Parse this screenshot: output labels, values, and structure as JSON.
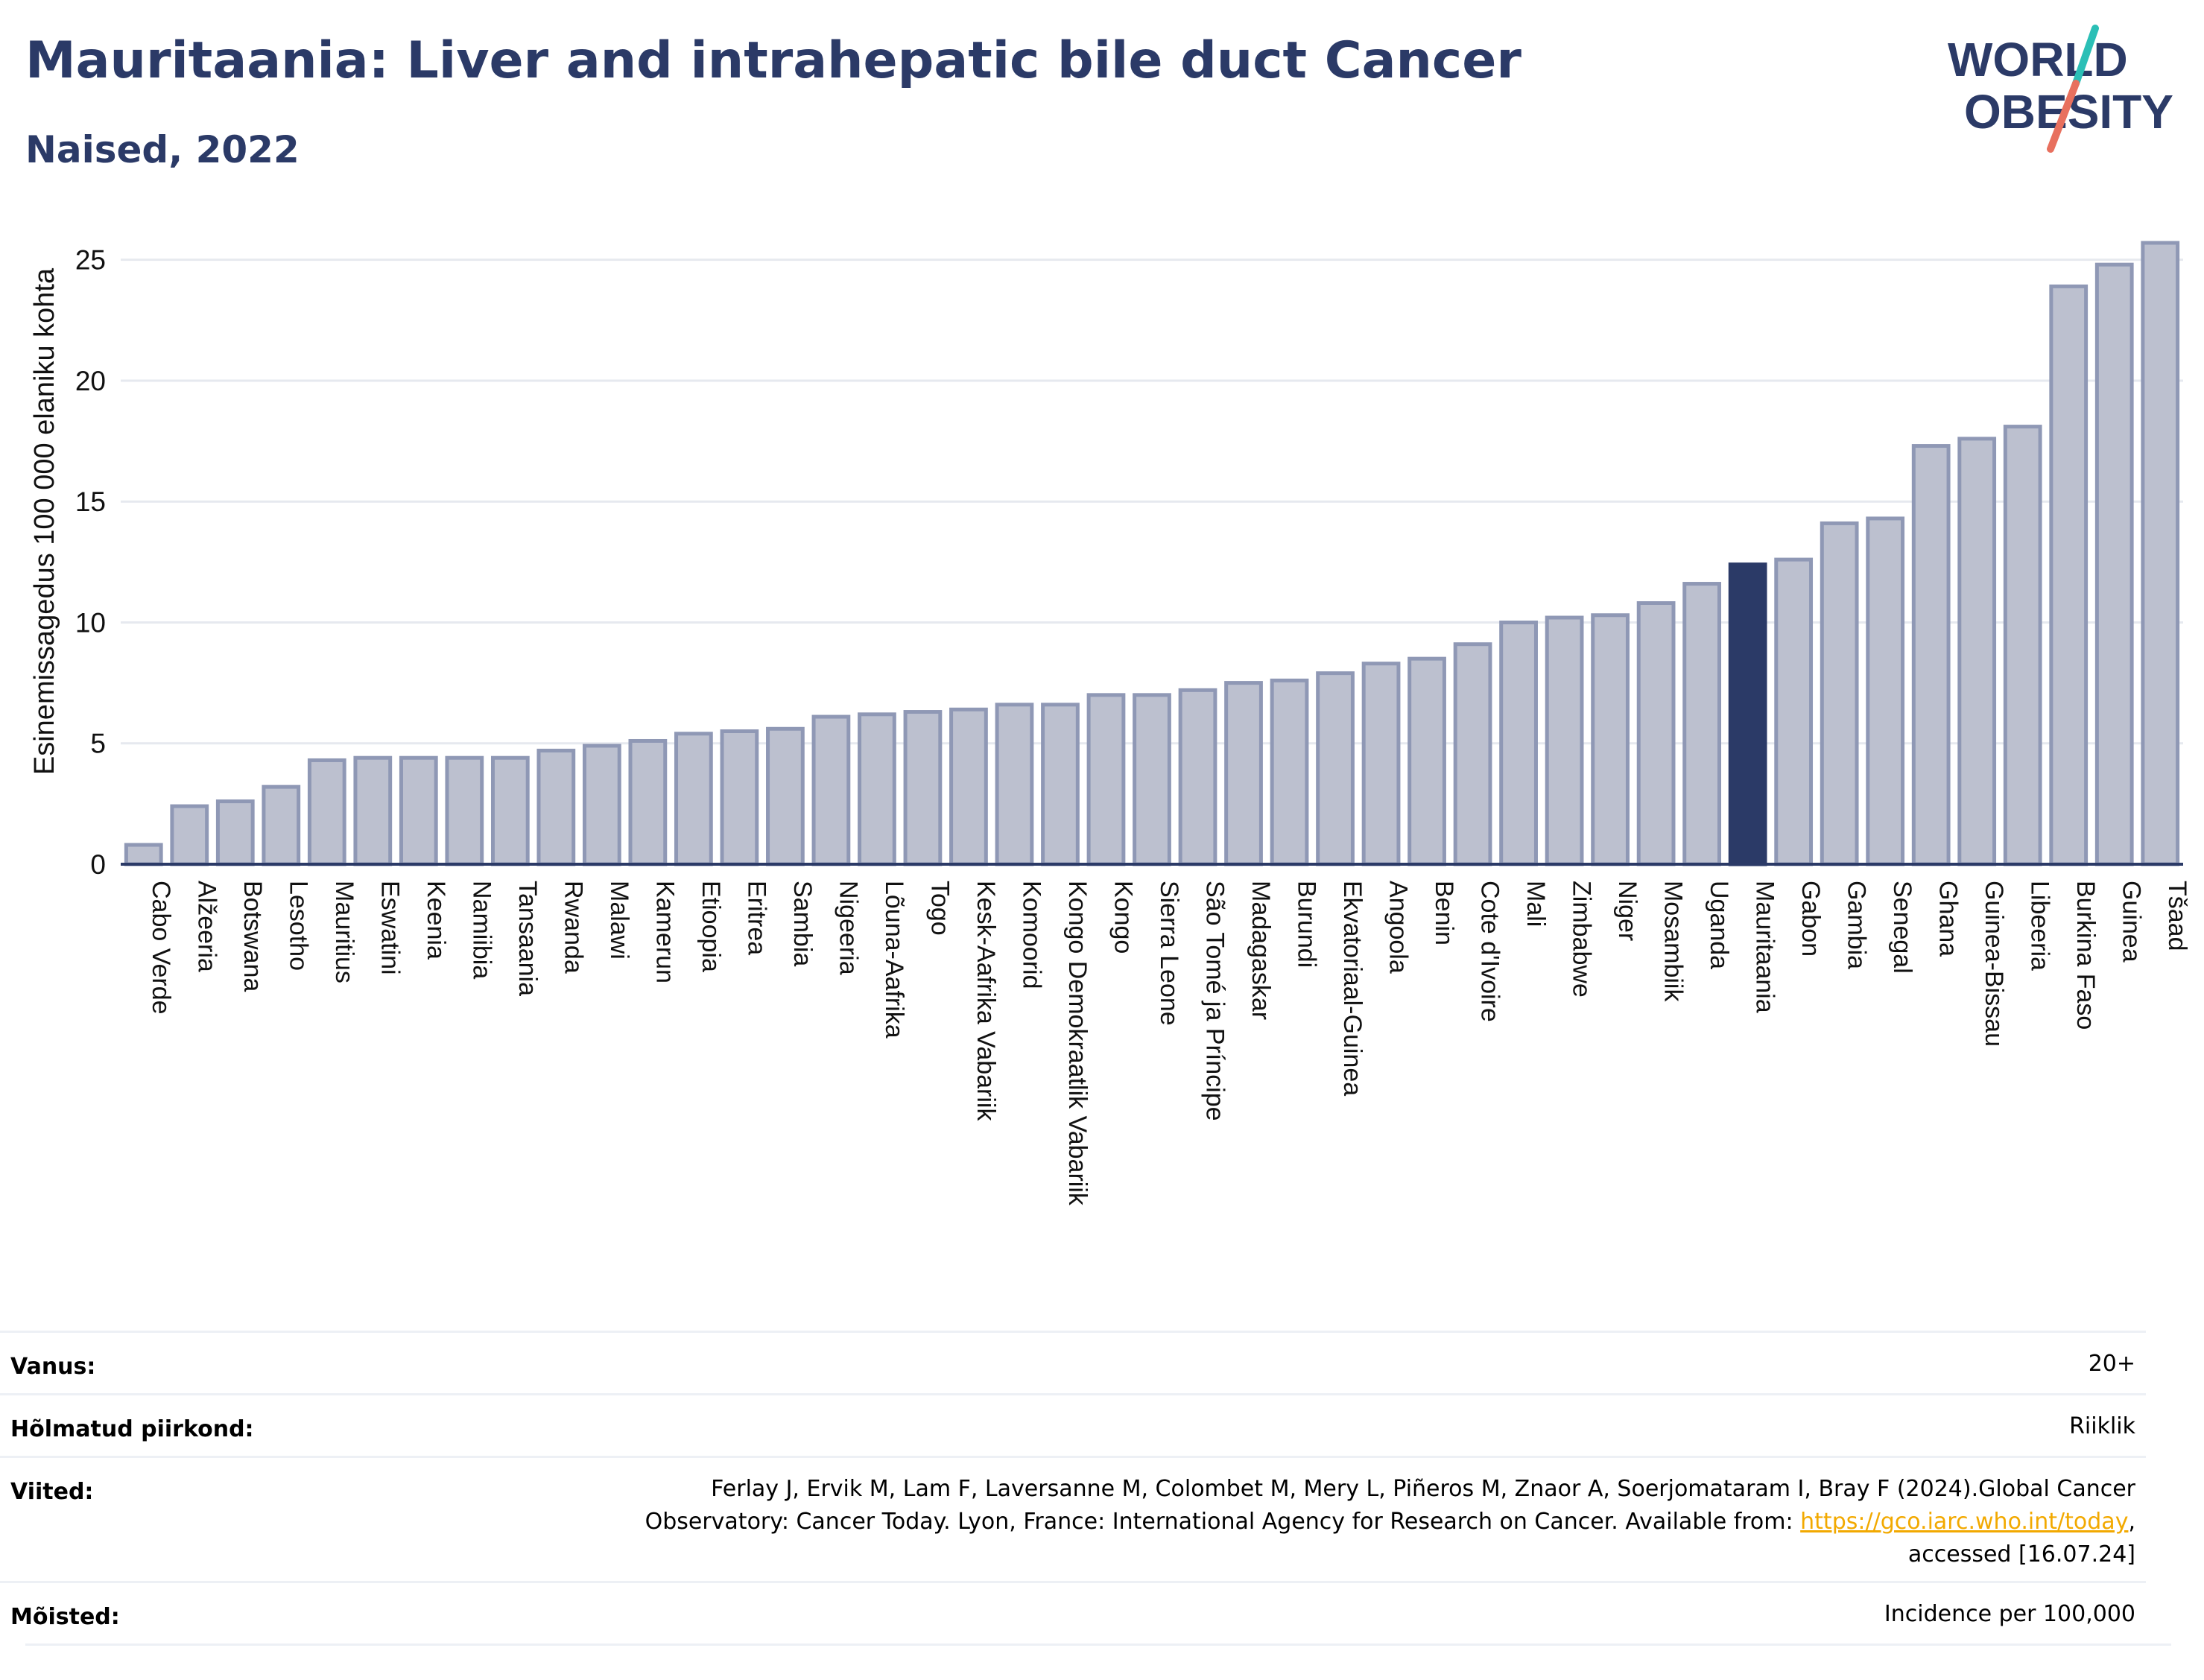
{
  "title": "Mauritaania: Liver and intrahepatic bile duct Cancer",
  "subtitle": "Naised, 2022",
  "logo": {
    "line1": "WORLD",
    "line2": "OBESITY"
  },
  "colors": {
    "bar": "#bcc0cf",
    "bar_border": "#8f98b5",
    "highlight": "#2b3a67",
    "title": "#2b3a67",
    "grid": "#e6e9ef"
  },
  "chart_data": {
    "type": "bar",
    "ylabel": "Esinemissagedus 100 000 elaniku kohta",
    "xlabel": "",
    "ylim": [
      0,
      26.5
    ],
    "yticks": [
      0,
      5,
      10,
      15,
      20,
      25
    ],
    "grid": true,
    "highlight": "Mauritaania",
    "categories": [
      "Cabo Verde",
      "Alžeeria",
      "Botswana",
      "Lesotho",
      "Mauritius",
      "Eswatini",
      "Keenia",
      "Namiibia",
      "Tansaania",
      "Rwanda",
      "Malawi",
      "Kamerun",
      "Etioopia",
      "Eritrea",
      "Sambia",
      "Nigeeria",
      "Lõuna-Aafrika",
      "Togo",
      "Kesk-Aafrika Vabariik",
      "Komoorid",
      "Kongo Demokraatlik Vabariik",
      "Kongo",
      "Sierra Leone",
      "São Tomé ja Príncipe",
      "Madagaskar",
      "Burundi",
      "Ekvatoriaal-Guinea",
      "Angoola",
      "Benin",
      "Cote d'Ivoire",
      "Mali",
      "Zimbabwe",
      "Niger",
      "Mosambiik",
      "Uganda",
      "Mauritaania",
      "Gabon",
      "Gambia",
      "Senegal",
      "Ghana",
      "Guinea-Bissau",
      "Libeeria",
      "Burkina Faso",
      "Guinea",
      "Tšaad"
    ],
    "values": [
      0.8,
      2.4,
      2.6,
      3.2,
      4.3,
      4.4,
      4.4,
      4.4,
      4.4,
      4.7,
      4.9,
      5.1,
      5.4,
      5.5,
      5.6,
      6.1,
      6.2,
      6.3,
      6.4,
      6.6,
      6.6,
      7.0,
      7.0,
      7.2,
      7.5,
      7.6,
      7.9,
      8.3,
      8.5,
      9.1,
      10.0,
      10.2,
      10.3,
      10.8,
      11.6,
      12.4,
      12.6,
      14.1,
      14.3,
      17.3,
      17.6,
      18.1,
      23.9,
      24.8,
      25.7
    ]
  },
  "meta": [
    {
      "label": "Vanus:",
      "value": "20+"
    },
    {
      "label": "Hõlmatud piirkond:",
      "value": "Riiklik"
    },
    {
      "label": "Viited:",
      "value_line1": "Ferlay J, Ervik M, Lam F, Laversanne M, Colombet M, Mery L, Piñeros M, Znaor A, Soerjomataram I, Bray F (2024).Global Cancer",
      "value_line2_pre": "Observatory: Cancer Today. Lyon, France: International Agency for Research on Cancer. Available from: ",
      "value_link": "https://gco.iarc.who.int/today",
      "value_line2_post": ",",
      "value_line3": "accessed [16.07.24]"
    },
    {
      "label": "Mõisted:",
      "value": "Incidence per 100,000"
    }
  ]
}
